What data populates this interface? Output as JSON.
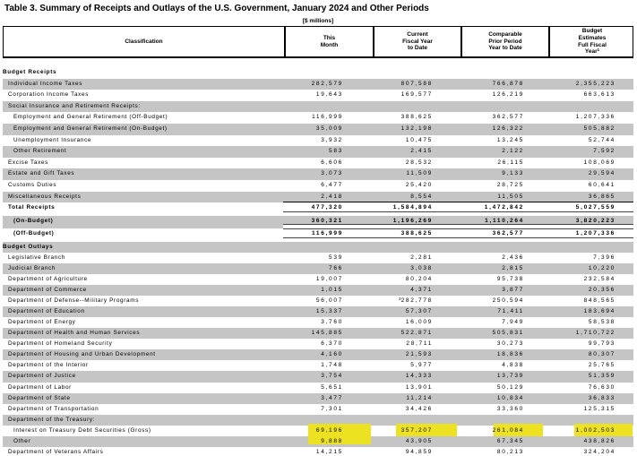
{
  "title": "Table 3. Summary of Receipts and Outlays of the U.S. Government, January 2024 and Other Periods",
  "units_caption": "[$ millions]",
  "style": {
    "shade_color": "#c5c5c5",
    "highlight_color": "#ece222"
  },
  "header": {
    "classification": "Classification",
    "cols": [
      {
        "lines": [
          "This",
          "Month"
        ]
      },
      {
        "lines": [
          "Current",
          "Fiscal Year",
          "to Date"
        ]
      },
      {
        "lines": [
          "Comparable",
          "Prior Period",
          "Year to Date"
        ]
      },
      {
        "lines": [
          "Budget",
          "Estimates",
          "Full Fiscal",
          "Year"
        ],
        "sup": "1"
      }
    ]
  },
  "rows": [
    {
      "label": "Budget Receipts",
      "indent": 0,
      "bold": true,
      "shaded": false,
      "values": [
        "",
        "",
        "",
        ""
      ]
    },
    {
      "label": "Individual Income Taxes",
      "indent": 1,
      "shaded": true,
      "values": [
        "282,579",
        "807,588",
        "766,878",
        "2,355,223"
      ]
    },
    {
      "label": "Corporation Income Taxes",
      "indent": 1,
      "shaded": false,
      "values": [
        "19,643",
        "169,577",
        "126,219",
        "663,613"
      ]
    },
    {
      "label": "Social Insurance and Retirement Receipts:",
      "indent": 1,
      "shaded": true,
      "values": [
        "",
        "",
        "",
        ""
      ]
    },
    {
      "label": "Employment and General Retirement (Off-Budget)",
      "indent": 2,
      "shaded": false,
      "values": [
        "116,999",
        "388,625",
        "362,577",
        "1,207,336"
      ]
    },
    {
      "label": "Employment and General Retirement (On-Budget)",
      "indent": 2,
      "shaded": true,
      "values": [
        "35,009",
        "132,198",
        "126,322",
        "505,882"
      ]
    },
    {
      "label": "Unemployment Insurance",
      "indent": 2,
      "shaded": false,
      "values": [
        "3,932",
        "10,475",
        "13,245",
        "52,744"
      ]
    },
    {
      "label": "Other Retirement",
      "indent": 2,
      "shaded": true,
      "values": [
        "583",
        "2,415",
        "2,122",
        "7,592"
      ]
    },
    {
      "label": "Excise Taxes",
      "indent": 1,
      "shaded": false,
      "values": [
        "6,606",
        "28,532",
        "26,115",
        "108,069"
      ]
    },
    {
      "label": "Estate and Gift Taxes",
      "indent": 1,
      "shaded": true,
      "values": [
        "3,073",
        "11,509",
        "9,133",
        "29,594"
      ]
    },
    {
      "label": "Customs Duties",
      "indent": 1,
      "shaded": false,
      "values": [
        "6,477",
        "25,420",
        "28,725",
        "60,641"
      ]
    },
    {
      "label": "Miscellaneous Receipts",
      "indent": 1,
      "shaded": true,
      "values": [
        "2,418",
        "8,554",
        "11,505",
        "36,865"
      ]
    },
    {
      "label": "Total Receipts",
      "indent": 1,
      "bold": true,
      "shaded": false,
      "tall": true,
      "rule_above": true,
      "dbl_below": true,
      "values": [
        "477,320",
        "1,584,894",
        "1,472,842",
        "5,027,559"
      ]
    },
    {
      "label": "(On-Budget)",
      "indent": 2,
      "bold": true,
      "shaded": true,
      "tall": true,
      "dbl_below": true,
      "values": [
        "360,321",
        "1,196,269",
        "1,110,264",
        "3,820,223"
      ]
    },
    {
      "label": "(Off-Budget)",
      "indent": 2,
      "bold": true,
      "shaded": false,
      "tall": true,
      "dbl_below": true,
      "values": [
        "116,999",
        "388,625",
        "362,577",
        "1,207,336"
      ]
    },
    {
      "label": "Budget Outlays",
      "indent": 0,
      "bold": true,
      "shaded": true,
      "values": [
        "",
        "",
        "",
        ""
      ]
    },
    {
      "label": "Legislative Branch",
      "indent": 1,
      "shaded": false,
      "values": [
        "539",
        "2,281",
        "2,436",
        "7,396"
      ]
    },
    {
      "label": "Judicial Branch",
      "indent": 1,
      "shaded": true,
      "values": [
        "766",
        "3,038",
        "2,815",
        "10,220"
      ]
    },
    {
      "label": "Department of Agriculture",
      "indent": 1,
      "shaded": false,
      "values": [
        "19,007",
        "80,204",
        "95,738",
        "232,584"
      ]
    },
    {
      "label": "Department of Commerce",
      "indent": 1,
      "shaded": true,
      "values": [
        "1,015",
        "4,371",
        "3,877",
        "20,356"
      ]
    },
    {
      "label": "Department of Defense--Military Programs",
      "indent": 1,
      "shaded": false,
      "sup": {
        "col": 1,
        "text": "2"
      },
      "values": [
        "56,007",
        "282,778",
        "250,594",
        "848,565"
      ]
    },
    {
      "label": "Department of Education",
      "indent": 1,
      "shaded": true,
      "values": [
        "15,337",
        "57,307",
        "71,411",
        "183,694"
      ]
    },
    {
      "label": "Department of Energy",
      "indent": 1,
      "shaded": false,
      "values": [
        "3,760",
        "16,009",
        "7,949",
        "58,538"
      ]
    },
    {
      "label": "Department of Health and Human Services",
      "indent": 1,
      "shaded": true,
      "values": [
        "145,885",
        "522,871",
        "505,831",
        "1,710,722"
      ]
    },
    {
      "label": "Department of Homeland Security",
      "indent": 1,
      "shaded": false,
      "values": [
        "6,370",
        "28,711",
        "30,273",
        "99,793"
      ]
    },
    {
      "label": "Department of Housing and Urban Development",
      "indent": 1,
      "shaded": true,
      "values": [
        "4,160",
        "21,593",
        "18,836",
        "80,307"
      ]
    },
    {
      "label": "Department of the Interior",
      "indent": 1,
      "shaded": false,
      "values": [
        "1,748",
        "5,977",
        "4,838",
        "25,765"
      ]
    },
    {
      "label": "Department of Justice",
      "indent": 1,
      "shaded": true,
      "values": [
        "3,754",
        "14,333",
        "13,739",
        "51,359"
      ]
    },
    {
      "label": "Department of Labor",
      "indent": 1,
      "shaded": false,
      "values": [
        "5,651",
        "13,901",
        "50,129",
        "76,630"
      ]
    },
    {
      "label": "Department of State",
      "indent": 1,
      "shaded": true,
      "values": [
        "3,477",
        "11,214",
        "10,834",
        "36,833"
      ]
    },
    {
      "label": "Department of Transportation",
      "indent": 1,
      "shaded": false,
      "values": [
        "7,301",
        "34,426",
        "33,360",
        "125,315"
      ]
    },
    {
      "label": "Department of the Treasury:",
      "indent": 1,
      "shaded": true,
      "values": [
        "",
        "",
        "",
        ""
      ]
    },
    {
      "label": "Interest on Treasury Debt Securities (Gross)",
      "indent": 2,
      "shaded": false,
      "highlight": true,
      "values": [
        "69,196",
        "357,207",
        "261,084",
        "1,002,503"
      ]
    },
    {
      "label": "Other",
      "indent": 2,
      "shaded": true,
      "spill": true,
      "values": [
        "9,888",
        "43,905",
        "67,345",
        "438,826"
      ]
    },
    {
      "label": "Department of Veterans Affairs",
      "indent": 1,
      "shaded": false,
      "values": [
        "14,215",
        "94,859",
        "80,213",
        "324,204"
      ]
    }
  ]
}
